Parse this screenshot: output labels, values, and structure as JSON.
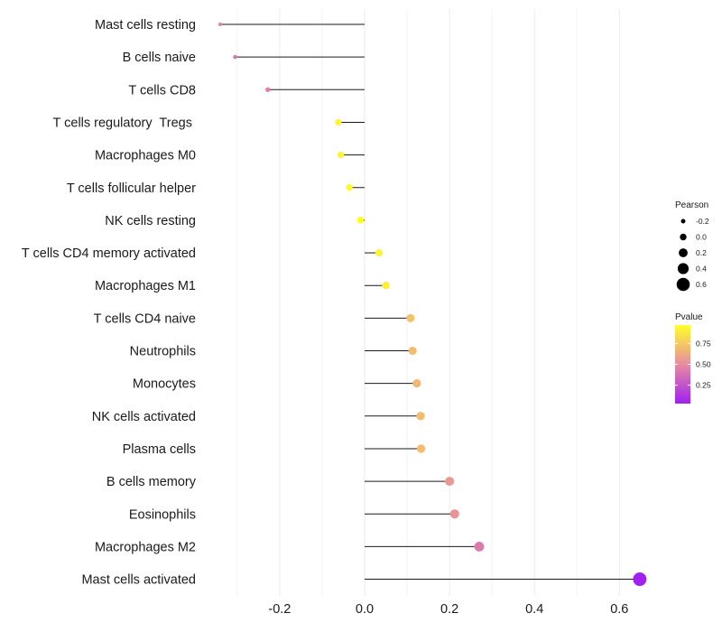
{
  "chart_data": {
    "type": "lollipop",
    "orientation": "horizontal",
    "title": "",
    "xlabel": "",
    "ylabel": "",
    "xlim": [
      -0.36,
      0.66
    ],
    "x_ticks": [
      -0.2,
      0.0,
      0.2,
      0.4,
      0.6
    ],
    "x_tick_labels": [
      "-0.2",
      "0.0",
      "0.2",
      "0.4",
      "0.6"
    ],
    "grid": true,
    "categories": [
      "Mast cells resting",
      "B cells naive",
      "T cells CD8",
      "T cells regulatory  Tregs ",
      "Macrophages M0",
      "T cells follicular helper",
      "NK cells resting",
      "T cells CD4 memory activated",
      "Macrophages M1",
      "T cells CD4 naive",
      "Neutrophils",
      "Monocytes",
      "NK cells activated",
      "Plasma cells",
      "B cells memory",
      "Eosinophils",
      "Macrophages M2",
      "Mast cells activated"
    ],
    "pearson": [
      -0.34,
      -0.305,
      -0.228,
      -0.062,
      -0.056,
      -0.036,
      -0.01,
      0.034,
      0.05,
      0.108,
      0.113,
      0.123,
      0.132,
      0.133,
      0.2,
      0.212,
      0.27,
      0.648
    ],
    "pvalue": [
      0.45,
      0.4,
      0.45,
      0.93,
      0.93,
      0.95,
      0.97,
      0.92,
      0.9,
      0.72,
      0.7,
      0.68,
      0.7,
      0.7,
      0.55,
      0.53,
      0.42,
      0.03
    ],
    "legend": {
      "size": {
        "title": "Pearson",
        "breaks": [
          -0.2,
          0.0,
          0.2,
          0.4,
          0.6
        ],
        "labels": [
          "-0.2",
          "0.0",
          "0.2",
          "0.4",
          "0.6"
        ]
      },
      "color": {
        "title": "Pvalue",
        "breaks": [
          0.75,
          0.5,
          0.25
        ],
        "labels": [
          "0.75",
          "0.50",
          "0.25"
        ],
        "range": [
          0.03,
          0.97
        ],
        "low_color": "#a020f0",
        "mid_color": "#e88ca0",
        "high_color": "#ffff2a"
      },
      "placement": "right"
    }
  }
}
